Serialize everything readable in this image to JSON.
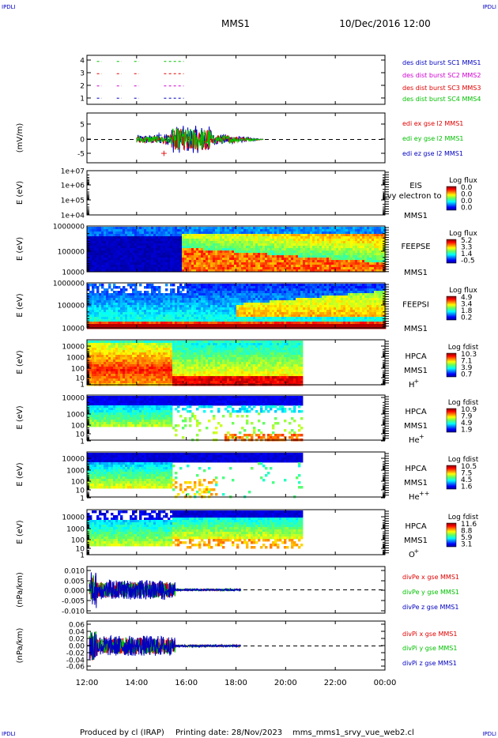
{
  "header": {
    "corner_tl": "IPDLI",
    "corner_tr": "IPDLI",
    "corner_bl": "IPDLI",
    "corner_br": "IPDLI",
    "title": "MMS1",
    "date": "10/Dec/2016 12:00"
  },
  "footer": {
    "produced": "Produced by cl (IRAP)",
    "printing": "Printing date: 28/Nov/2023",
    "script": "mms_mms1_srvy_vue_web2.cl"
  },
  "colors": {
    "red": "#e00000",
    "green": "#00c000",
    "blue": "#0000c0",
    "magenta": "#d000d0",
    "axis": "#000000"
  },
  "chart_data": [
    {
      "id": "p1",
      "type": "line",
      "ylabel": "",
      "yticks": [
        "4",
        "3",
        "2",
        "1"
      ],
      "ylim": [
        0.5,
        4.5
      ],
      "series": [
        {
          "name": "des dist burst SC1 MMS1",
          "color": "#0000c0",
          "level": 1,
          "segments": [
            [
              12.4,
              12.6
            ],
            [
              13.2,
              13.4
            ],
            [
              13.9,
              14.1
            ],
            [
              15.1,
              15.2
            ],
            [
              15.3,
              15.9
            ]
          ]
        },
        {
          "name": "des dist burst SC2 MMS2",
          "color": "#d000d0",
          "level": 2,
          "segments": [
            [
              12.4,
              12.6
            ],
            [
              13.2,
              13.4
            ],
            [
              13.9,
              14.1
            ],
            [
              15.1,
              15.2
            ],
            [
              15.3,
              15.9
            ]
          ]
        },
        {
          "name": "des dist burst SC3 MMS3",
          "color": "#e00000",
          "level": 3,
          "segments": [
            [
              12.4,
              12.6
            ],
            [
              13.2,
              13.4
            ],
            [
              13.9,
              14.1
            ],
            [
              15.1,
              15.2
            ],
            [
              15.3,
              15.9
            ]
          ]
        },
        {
          "name": "des dist burst SC4 MMS4",
          "color": "#00c000",
          "level": 4,
          "segments": [
            [
              12.4,
              12.6
            ],
            [
              13.2,
              13.4
            ],
            [
              13.9,
              14.1
            ],
            [
              15.1,
              15.2
            ],
            [
              15.3,
              15.9
            ]
          ]
        }
      ]
    },
    {
      "id": "p2",
      "type": "line",
      "ylabel": "(mV/m)",
      "yticks": [
        "5",
        "0",
        "-5"
      ],
      "ylim": [
        -7.5,
        8.5
      ],
      "active_range": [
        14.0,
        19.1
      ],
      "series": [
        {
          "name": "edi ex gse l2 MMS1",
          "color": "#e00000"
        },
        {
          "name": "edi ey gse l2 MMS1",
          "color": "#00c000"
        },
        {
          "name": "edi ez gse l2 MMS1",
          "color": "#0000c0"
        }
      ]
    },
    {
      "id": "p3",
      "type": "heatmap",
      "ylabel": "E (eV)",
      "yticks": [
        "1e+07",
        "1e+06",
        "1e+05",
        "1e+04"
      ],
      "instrument": [
        "EIS",
        "MMS1"
      ],
      "overlay_text": "Lvy electron to",
      "colorbar": {
        "title": "Log flux",
        "ticks": [
          "0.0",
          "0.0",
          "0.0",
          "0.0"
        ]
      },
      "data_extent": null
    },
    {
      "id": "p4",
      "type": "heatmap",
      "ylabel": "E (eV)",
      "yticks": [
        "1000000",
        "100000",
        "10000"
      ],
      "instrument": [
        "FEEPSE",
        "MMS1"
      ],
      "colorbar": {
        "title": "Log flux",
        "ticks": [
          "5.2",
          "3.3",
          "1.4",
          "-0.5"
        ]
      },
      "data_extent": [
        12.0,
        24.0
      ]
    },
    {
      "id": "p5",
      "type": "heatmap",
      "ylabel": "E (eV)",
      "yticks": [
        "1000000",
        "100000",
        "10000"
      ],
      "instrument": [
        "FEEPSI",
        "MMS1"
      ],
      "colorbar": {
        "title": "Log flux",
        "ticks": [
          "4.9",
          "3.4",
          "1.8",
          "0.2"
        ]
      },
      "data_extent": [
        12.0,
        24.0
      ]
    },
    {
      "id": "p6",
      "type": "heatmap",
      "ylabel": "E (eV)",
      "yticks": [
        "10000",
        "1000",
        "100",
        "10",
        "1"
      ],
      "instrument": [
        "HPCA",
        "MMS1"
      ],
      "species": "H",
      "species_sup": "+",
      "colorbar": {
        "title": "Log fdist",
        "ticks": [
          "10.3",
          "7.1",
          "3.9",
          "0.7"
        ]
      },
      "data_extent": [
        12.0,
        20.6
      ]
    },
    {
      "id": "p7",
      "type": "heatmap",
      "ylabel": "E (eV)",
      "yticks": [
        "10000",
        "1000",
        "100",
        "10",
        "1"
      ],
      "instrument": [
        "HPCA",
        "MMS1"
      ],
      "species": "He",
      "species_sup": "+",
      "colorbar": {
        "title": "Log fdist",
        "ticks": [
          "10.9",
          "7.9",
          "4.9",
          "1.9"
        ]
      },
      "data_extent": [
        12.0,
        20.6
      ]
    },
    {
      "id": "p8",
      "type": "heatmap",
      "ylabel": "E (eV)",
      "yticks": [
        "10000",
        "1000",
        "100",
        "10",
        "1"
      ],
      "instrument": [
        "HPCA",
        "MMS1"
      ],
      "species": "He",
      "species_sup": "++",
      "colorbar": {
        "title": "Log fdist",
        "ticks": [
          "10.5",
          "7.5",
          "4.5",
          "1.6"
        ]
      },
      "data_extent": [
        12.0,
        20.6
      ]
    },
    {
      "id": "p9",
      "type": "heatmap",
      "ylabel": "E (eV)",
      "yticks": [
        "10000",
        "1000",
        "100",
        "10",
        "1"
      ],
      "instrument": [
        "HPCA",
        "MMS1"
      ],
      "species": "O",
      "species_sup": "+",
      "colorbar": {
        "title": "Log fdist",
        "ticks": [
          "11.6",
          "8.8",
          "5.9",
          "3.1"
        ]
      },
      "data_extent": [
        12.0,
        20.6
      ]
    },
    {
      "id": "p10",
      "type": "line",
      "ylabel": "(nPa/km)",
      "yticks": [
        "0.010",
        "0.005",
        "0.000",
        "-0.005",
        "-0.010"
      ],
      "ylim": [
        -0.0115,
        0.0115
      ],
      "active_range": [
        12.1,
        18.2
      ],
      "series": [
        {
          "name": "divPe x gse MMS1",
          "color": "#e00000"
        },
        {
          "name": "divPe y gse MMS1",
          "color": "#00c000"
        },
        {
          "name": "divPe z gse MMS1",
          "color": "#0000c0"
        }
      ]
    },
    {
      "id": "p11",
      "type": "line",
      "ylabel": "(nPa/km)",
      "yticks": [
        "0.06",
        "0.04",
        "0.02",
        "0.00",
        "-0.02",
        "-0.04",
        "-0.06"
      ],
      "ylim": [
        -0.068,
        0.07
      ],
      "active_range": [
        12.1,
        18.2
      ],
      "series": [
        {
          "name": "divPi x gse MMS1",
          "color": "#e00000"
        },
        {
          "name": "divPi y gse MMS1",
          "color": "#00c000"
        },
        {
          "name": "divPi z gse MMS1",
          "color": "#0000c0"
        }
      ]
    }
  ],
  "xaxis": {
    "range": [
      12,
      24
    ],
    "ticks": [
      {
        "value": 12,
        "label": "12:00"
      },
      {
        "value": 14,
        "label": "14:00"
      },
      {
        "value": 16,
        "label": "16:00"
      },
      {
        "value": 18,
        "label": "18:00"
      },
      {
        "value": 20,
        "label": "20:00"
      },
      {
        "value": 22,
        "label": "22:00"
      },
      {
        "value": 24,
        "label": "00:00"
      }
    ]
  }
}
